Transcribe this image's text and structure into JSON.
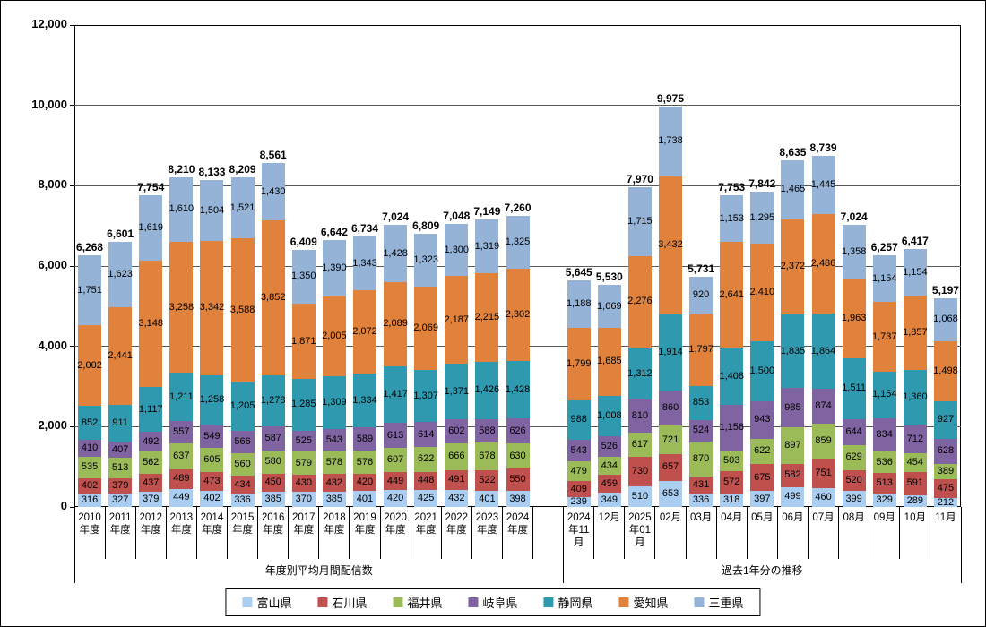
{
  "chart_data": {
    "type": "bar",
    "stacked": true,
    "title": "",
    "ylim": [
      0,
      12000
    ],
    "ytick_step": 2000,
    "grid": true,
    "legend_position": "bottom",
    "series": [
      {
        "name": "富山県",
        "color": "#A9CEF2"
      },
      {
        "name": "石川県",
        "color": "#C0504D"
      },
      {
        "name": "福井県",
        "color": "#9BBB59"
      },
      {
        "name": "岐阜県",
        "color": "#8064A2"
      },
      {
        "name": "静岡県",
        "color": "#2F9AAF"
      },
      {
        "name": "愛知県",
        "color": "#E0813C"
      },
      {
        "name": "三重県",
        "color": "#95B3D7"
      }
    ],
    "groups": [
      {
        "label": "年度別平均月間配信数",
        "categories": [
          "2010\n年度",
          "2011\n年度",
          "2012\n年度",
          "2013\n年度",
          "2014\n年度",
          "2015\n年度",
          "2016\n年度",
          "2017\n年度",
          "2018\n年度",
          "2019\n年度",
          "2020\n年度",
          "2021\n年度",
          "2022\n年度",
          "2023\n年度",
          "2024\n年度"
        ],
        "values": [
          [
            316,
            402,
            535,
            410,
            852,
            2002,
            1751
          ],
          [
            327,
            379,
            513,
            407,
            911,
            2441,
            1623
          ],
          [
            379,
            437,
            562,
            492,
            1117,
            3148,
            1619
          ],
          [
            449,
            489,
            637,
            557,
            1211,
            3258,
            1610
          ],
          [
            402,
            473,
            605,
            549,
            1258,
            3342,
            1504
          ],
          [
            336,
            434,
            560,
            566,
            1205,
            3588,
            1521
          ],
          [
            385,
            450,
            580,
            587,
            1278,
            3852,
            1430
          ],
          [
            370,
            430,
            579,
            525,
            1285,
            1871,
            1350
          ],
          [
            385,
            432,
            578,
            543,
            1309,
            2005,
            1390
          ],
          [
            401,
            420,
            576,
            589,
            1334,
            2072,
            1343
          ],
          [
            420,
            449,
            607,
            613,
            1417,
            2089,
            1428
          ],
          [
            425,
            448,
            622,
            614,
            1307,
            2069,
            1323
          ],
          [
            432,
            491,
            666,
            602,
            1371,
            2187,
            1300
          ],
          [
            401,
            522,
            678,
            588,
            1426,
            2215,
            1319
          ],
          [
            398,
            550,
            630,
            626,
            1428,
            2302,
            1325
          ]
        ],
        "totals": [
          6268,
          6601,
          7754,
          8210,
          8133,
          8209,
          8561,
          6409,
          6642,
          6734,
          7024,
          6809,
          7048,
          7149,
          7260
        ]
      },
      {
        "label": "過去1年分の推移",
        "categories": [
          "2024\n年11\n月",
          "12月",
          "2025\n年01\n月",
          "02月",
          "03月",
          "04月",
          "05月",
          "06月",
          "07月",
          "08月",
          "09月",
          "10月",
          "11月"
        ],
        "values": [
          [
            239,
            409,
            479,
            543,
            988,
            1799,
            1188
          ],
          [
            349,
            459,
            434,
            526,
            1008,
            1685,
            1069
          ],
          [
            510,
            730,
            617,
            810,
            1312,
            2276,
            1715
          ],
          [
            653,
            657,
            721,
            860,
            1914,
            3432,
            1738
          ],
          [
            336,
            431,
            870,
            524,
            853,
            1797,
            920
          ],
          [
            318,
            572,
            503,
            1158,
            1408,
            2641,
            1153
          ],
          [
            397,
            675,
            622,
            943,
            1500,
            2410,
            1295
          ],
          [
            499,
            582,
            897,
            985,
            1835,
            2372,
            1465
          ],
          [
            460,
            751,
            859,
            874,
            1864,
            2486,
            1445
          ],
          [
            399,
            520,
            629,
            644,
            1511,
            1963,
            1358
          ],
          [
            329,
            513,
            536,
            834,
            1154,
            1737,
            1154
          ],
          [
            289,
            591,
            454,
            712,
            1360,
            1857,
            1154
          ],
          [
            212,
            475,
            389,
            628,
            927,
            1498,
            1068
          ]
        ],
        "totals": [
          5645,
          5530,
          7970,
          9975,
          5731,
          7753,
          7842,
          8635,
          8739,
          7024,
          6257,
          6417,
          5197
        ]
      }
    ]
  }
}
